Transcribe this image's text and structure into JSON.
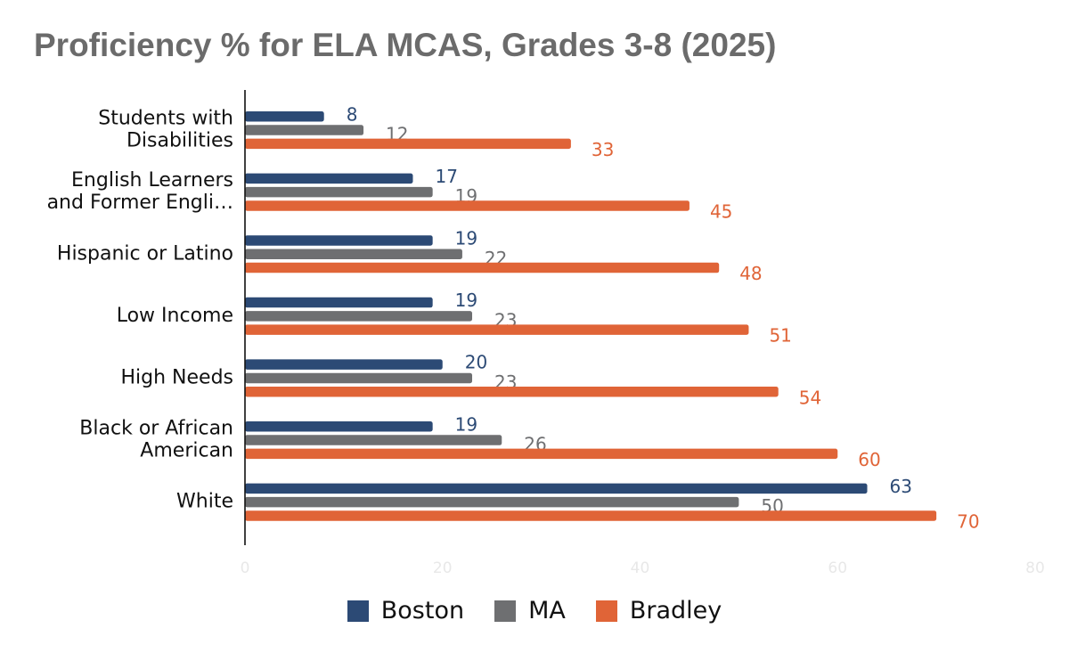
{
  "chart_data": {
    "type": "bar",
    "orientation": "horizontal",
    "title": "Proficiency % for ELA MCAS, Grades 3-8 (2025)",
    "xlabel": "",
    "ylabel": "",
    "xlim": [
      0,
      80
    ],
    "ticks": [
      "0",
      "20",
      "40",
      "60",
      "80"
    ],
    "categories": [
      [
        "Students with",
        "Disabilities"
      ],
      [
        "English Learners",
        "and Former Engli…"
      ],
      [
        "Hispanic or Latino"
      ],
      [
        "Low Income"
      ],
      [
        "High Needs"
      ],
      [
        "Black or African",
        "American"
      ],
      [
        "White"
      ]
    ],
    "series": [
      {
        "name": "Boston",
        "color": "#2c4a75",
        "values": [
          8,
          17,
          19,
          19,
          20,
          19,
          63
        ]
      },
      {
        "name": "MA",
        "color": "#6e6f71",
        "values": [
          12,
          19,
          22,
          23,
          23,
          26,
          50
        ]
      },
      {
        "name": "Bradley",
        "color": "#e06437",
        "values": [
          33,
          45,
          48,
          51,
          54,
          60,
          70
        ]
      }
    ],
    "legend": "bottom-center",
    "grid": false
  }
}
